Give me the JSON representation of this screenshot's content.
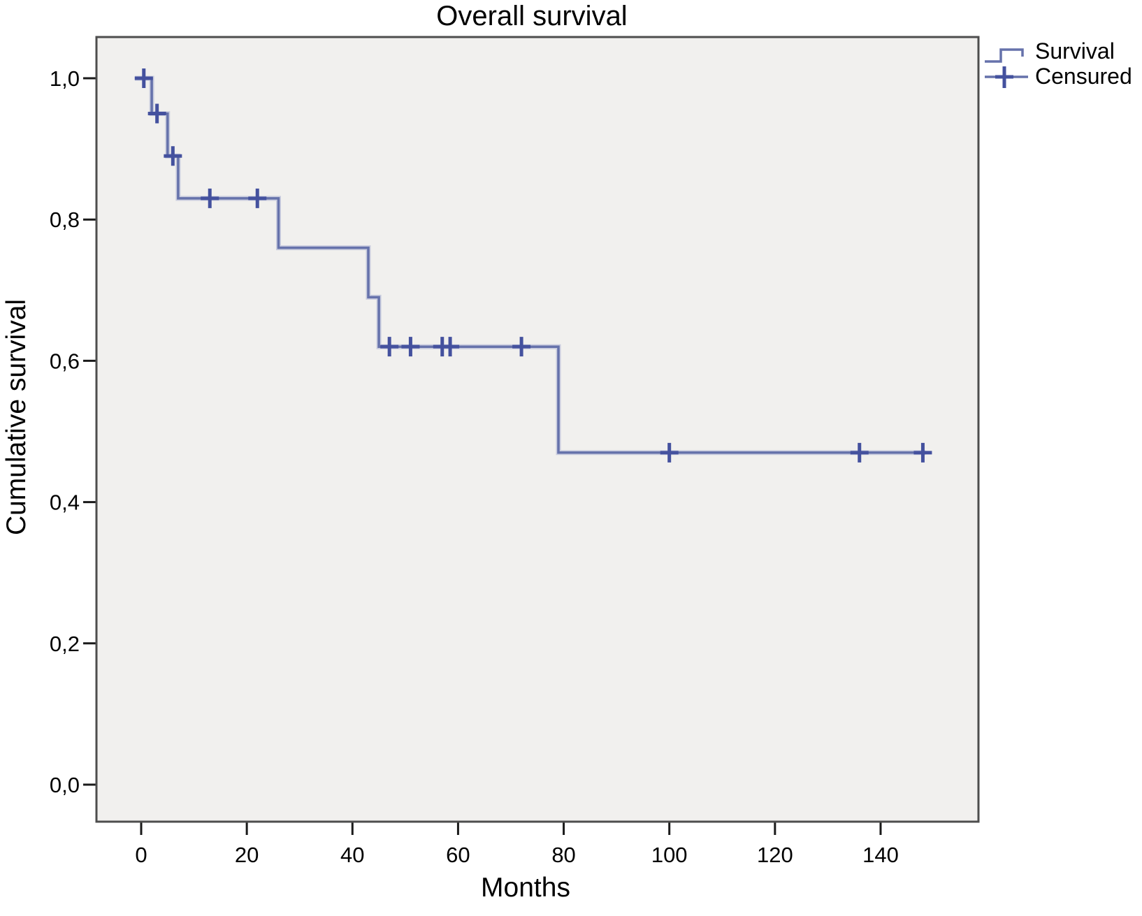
{
  "title": "Overall survival",
  "x_axis_label": "Months",
  "y_axis_label": "Cumulative survival",
  "legend": {
    "position": "top-right-outside",
    "items": [
      {
        "label": "Survival",
        "glyph": "step-line-icon"
      },
      {
        "label": "Censured",
        "glyph": "plus-tick-icon"
      }
    ]
  },
  "colors": {
    "curve": "#6672ab",
    "curve_halo": "#a8aed2",
    "censor": "#44519e",
    "plot_bg": "#f1f0ee",
    "frame": "#4d4d4d",
    "tick": "#1a1a1a",
    "text": "#000000",
    "page_bg": "#ffffff"
  },
  "x_ticks": [
    0,
    20,
    40,
    60,
    80,
    100,
    120,
    140
  ],
  "y_ticks": [
    {
      "value": 1.0,
      "label": "1,0"
    },
    {
      "value": 0.8,
      "label": "0,8"
    },
    {
      "value": 0.6,
      "label": "0,6"
    },
    {
      "value": 0.4,
      "label": "0,4"
    },
    {
      "value": 0.2,
      "label": "0,2"
    },
    {
      "value": 0.0,
      "label": "0,0"
    }
  ],
  "chart_data": {
    "type": "line",
    "subtype": "kaplan-meier-step",
    "title": "Overall survival",
    "xlabel": "Months",
    "ylabel": "Cumulative survival",
    "xlim": [
      -8.5,
      158.5
    ],
    "ylim": [
      -0.052,
      1.058
    ],
    "grid": false,
    "legend_position": "top-right",
    "series": [
      {
        "name": "Survival",
        "start": [
          0,
          1.0
        ],
        "steps": [
          {
            "t": 2,
            "s": 0.95
          },
          {
            "t": 5,
            "s": 0.89
          },
          {
            "t": 7,
            "s": 0.83
          },
          {
            "t": 26,
            "s": 0.76
          },
          {
            "t": 43,
            "s": 0.69
          },
          {
            "t": 45,
            "s": 0.62
          },
          {
            "t": 79,
            "s": 0.47
          }
        ],
        "end_t": 148.5
      }
    ],
    "censored_points": [
      {
        "t": 0.5,
        "s": 1.0
      },
      {
        "t": 3,
        "s": 0.95
      },
      {
        "t": 6,
        "s": 0.89
      },
      {
        "t": 13,
        "s": 0.83
      },
      {
        "t": 22,
        "s": 0.83
      },
      {
        "t": 47,
        "s": 0.62
      },
      {
        "t": 51,
        "s": 0.62
      },
      {
        "t": 57,
        "s": 0.62
      },
      {
        "t": 58.5,
        "s": 0.62
      },
      {
        "t": 72,
        "s": 0.62
      },
      {
        "t": 100,
        "s": 0.47
      },
      {
        "t": 136,
        "s": 0.47
      },
      {
        "t": 148,
        "s": 0.47
      }
    ]
  }
}
